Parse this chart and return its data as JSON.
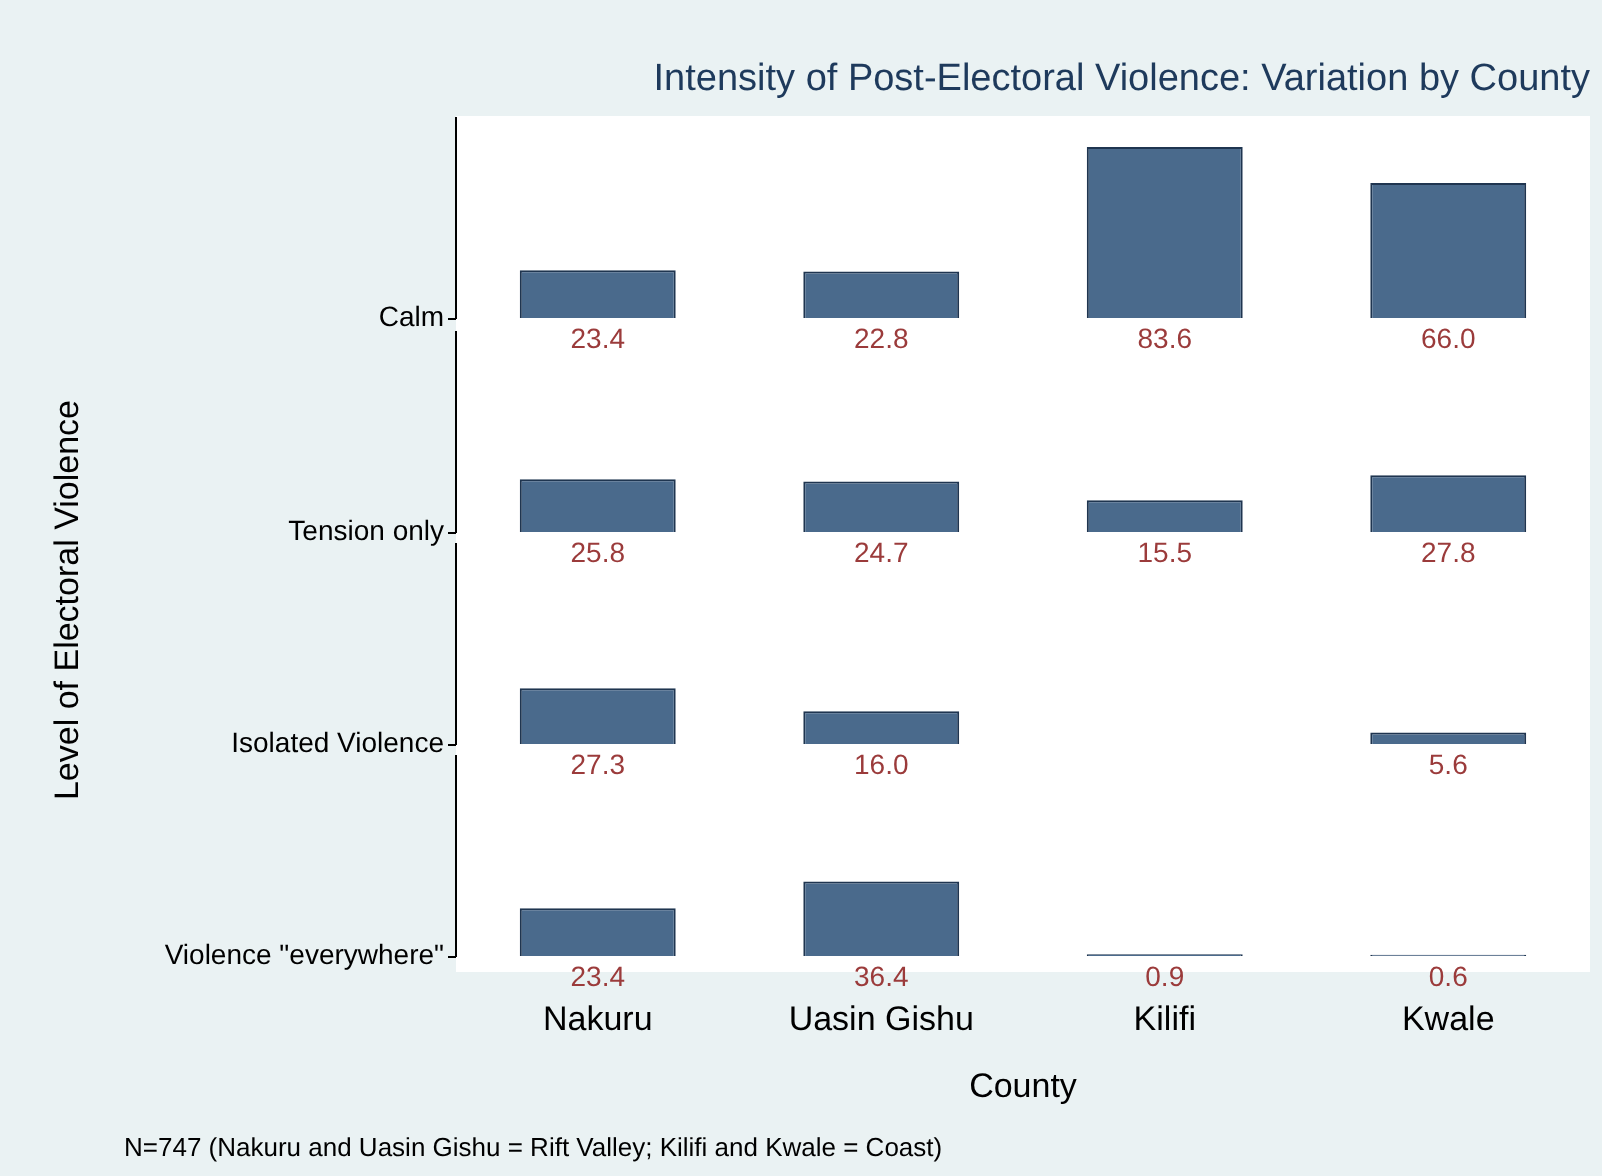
{
  "chart_data": [
    {
      "type": "bar",
      "title": "Intensity of Post-Electoral Violence: Variation by County",
      "ylabel": "Calm",
      "categories": [
        null,
        null,
        null,
        null
      ],
      "color": "#4a6a8c",
      "values": [
        23.4,
        22.8,
        83.6,
        66.0
      ],
      "value_labels": [
        "23.4",
        "22.8",
        "83.6",
        "66.0"
      ],
      "tick_labels": false
    },
    {
      "type": "bar",
      "ylabel": "Tension only",
      "categories": [
        null,
        null,
        null,
        null
      ],
      "color": "#4a6a8c",
      "values": [
        25.8,
        24.7,
        15.5,
        27.8
      ],
      "value_labels": [
        "25.8",
        "24.7",
        "15.5",
        "27.8"
      ],
      "tick_labels": false
    },
    {
      "type": "bar",
      "ylabel": "Isolated Violence",
      "categories": [
        null,
        null,
        null,
        null
      ],
      "color": "#4a6a8c",
      "values": [
        27.3,
        16.0,
        null,
        5.6
      ],
      "value_labels": [
        "27.3",
        "16.0",
        null,
        "5.6"
      ],
      "tick_labels": false
    },
    {
      "type": "bar",
      "ylabel": "Violence \"everywhere\"",
      "xlabel": "County",
      "categories": [
        "Nakuru",
        "Uasin Gishu",
        "Kilifi",
        "Kwale"
      ],
      "color": "#4a6a8c",
      "values": [
        23.4,
        36.4,
        0.9,
        0.6
      ],
      "value_labels": [
        "23.4",
        "36.4",
        "0.9",
        "0.6"
      ],
      "tick_labels": "x",
      "annotations": [
        "N=747 (Nakuru and Uasin Gishu = Rift Valley; Kilifi and Kwale = Coast)"
      ]
    },
    {
      "type": "other",
      "annotations": [
        "Level of Electoral Violence"
      ]
    }
  ]
}
